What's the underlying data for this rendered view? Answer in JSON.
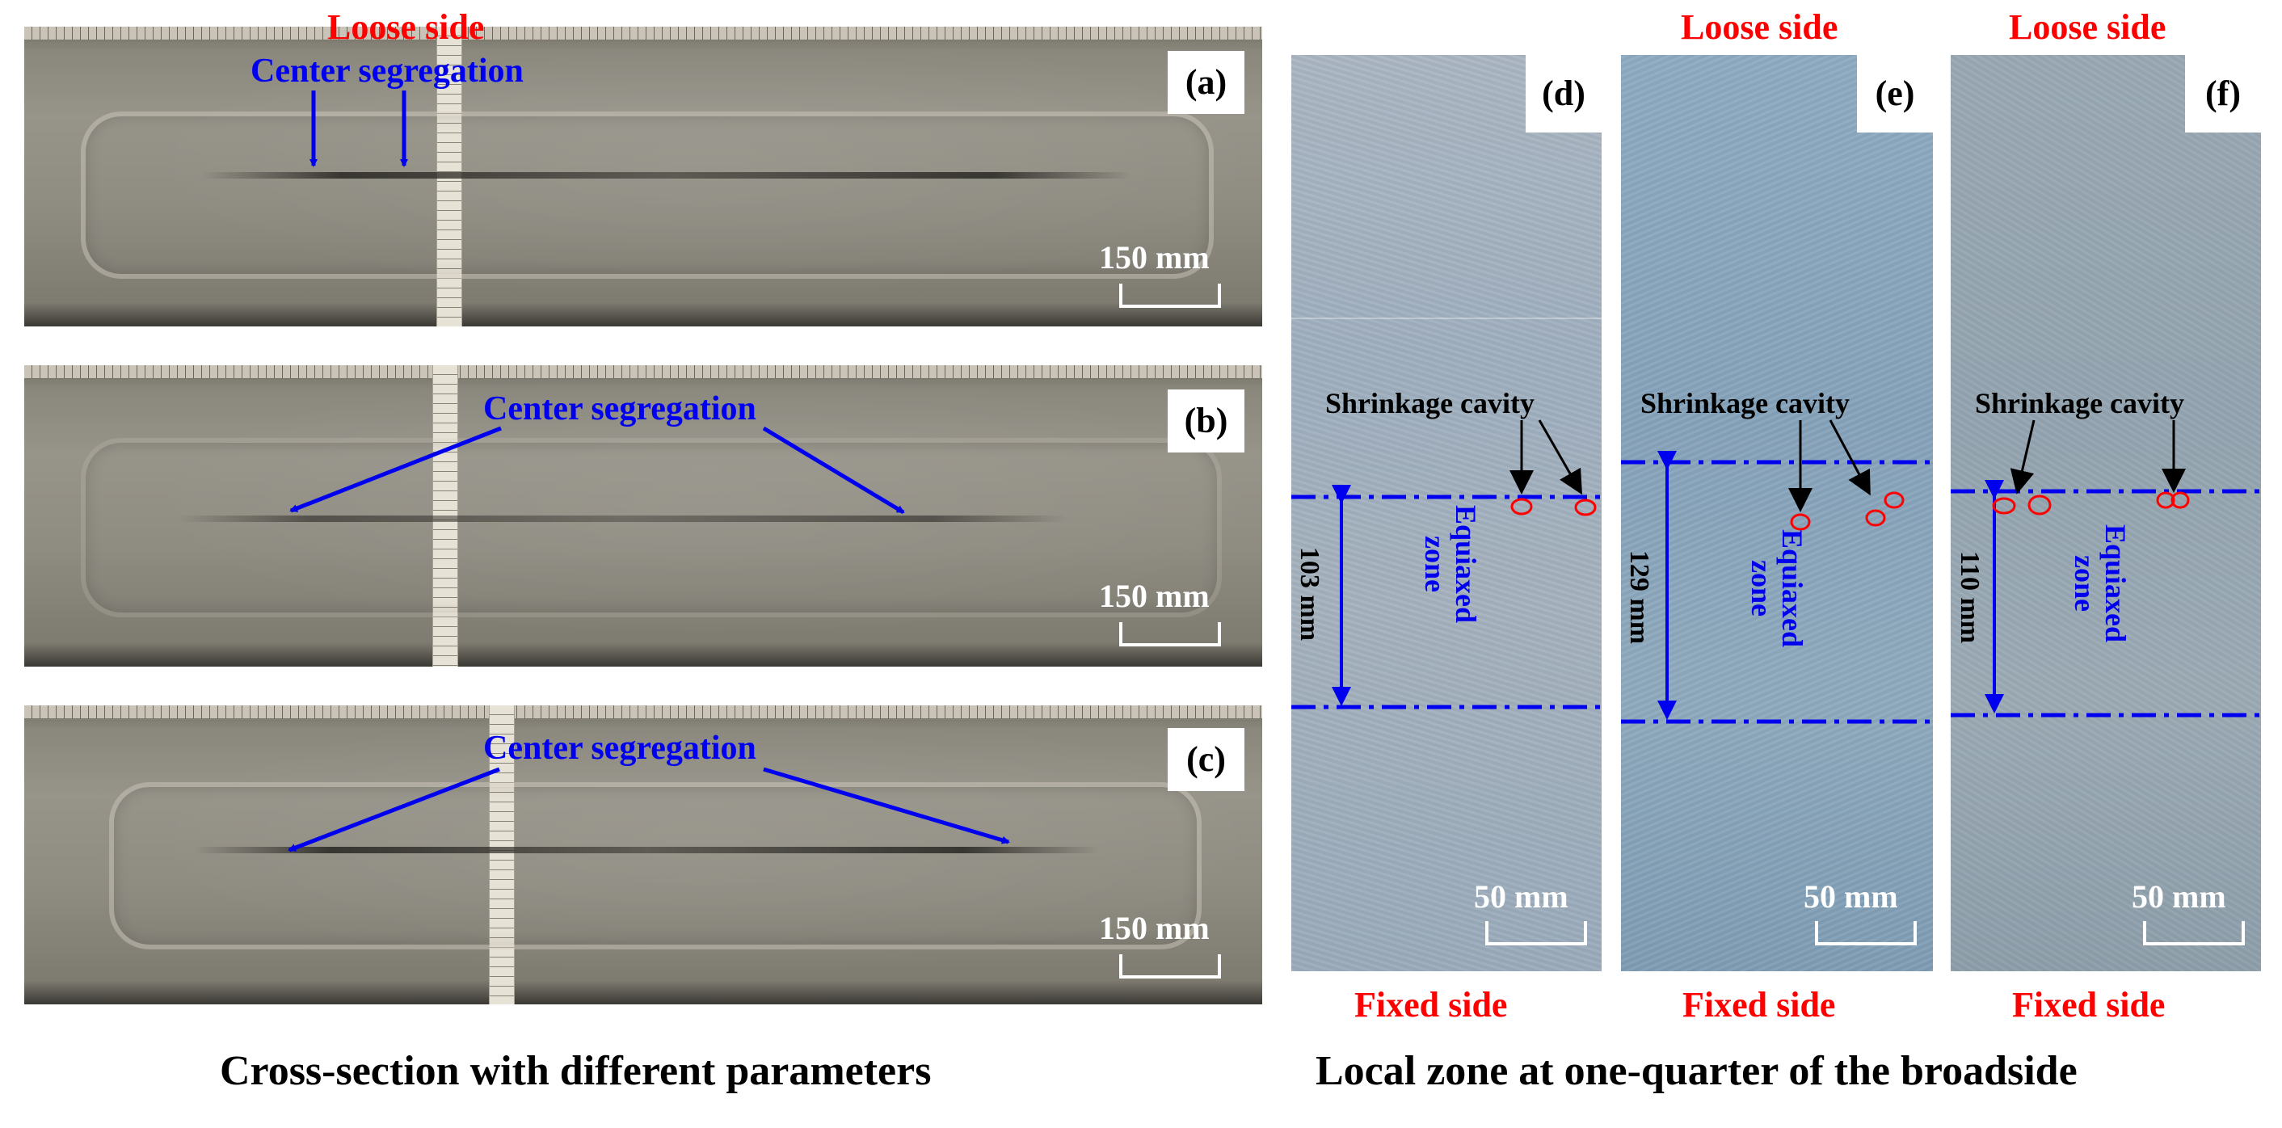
{
  "cross_section": {
    "panels": [
      {
        "tag": "(a)",
        "annotation": "Center segregation",
        "scale": "150 mm"
      },
      {
        "tag": "(b)",
        "annotation": "Center segregation",
        "scale": "150 mm"
      },
      {
        "tag": "(c)",
        "annotation": "Center segregation",
        "scale": "150 mm"
      }
    ],
    "caption": "Cross-section with different parameters"
  },
  "local_zone": {
    "panels": [
      {
        "tag": "(d)",
        "top": "Loose side",
        "bottom": "Fixed side",
        "defect": "Shrinkage cavity",
        "zone_line1": "Equiaxed",
        "zone_line2": "zone",
        "width": "103 mm",
        "scale": "50 mm"
      },
      {
        "tag": "(e)",
        "top": "Loose side",
        "bottom": "Fixed side",
        "defect": "Shrinkage cavity",
        "zone_line1": "Equiaxed",
        "zone_line2": "zone",
        "width": "129 mm",
        "scale": "50 mm"
      },
      {
        "tag": "(f)",
        "top": "Loose side",
        "bottom": "Fixed side",
        "defect": "Shrinkage cavity",
        "zone_line1": "Equiaxed",
        "zone_line2": "zone",
        "width": "110 mm",
        "scale": "50 mm"
      }
    ],
    "caption": "Local zone at one-quarter of the broadside"
  },
  "colors": {
    "annotation": "#0000ee",
    "side_label": "#ff0000",
    "cavity_marker": "#ff0000"
  }
}
